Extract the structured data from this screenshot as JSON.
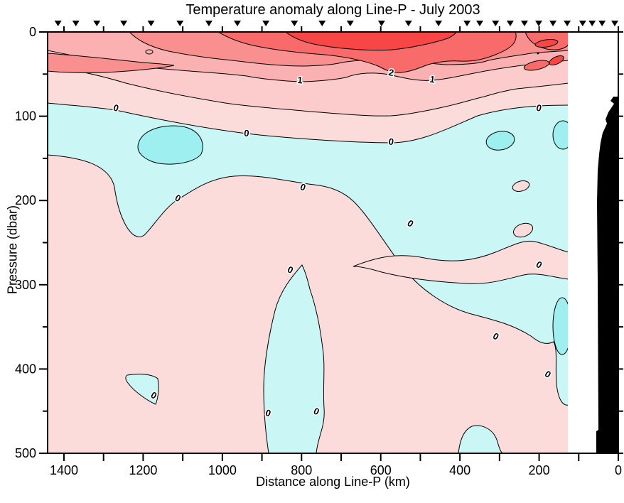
{
  "figure": {
    "title": "Temperature anomaly along Line-P - July 2003",
    "x_axis": {
      "label": "Distance along Line-P (km)",
      "min": 0,
      "max": 1400,
      "reversed": true,
      "labeled_ticks": [
        1400,
        1200,
        1000,
        800,
        600,
        400,
        200,
        0
      ],
      "minor_tick_step": 100
    },
    "y_axis": {
      "label": "Pressure (dbar)",
      "min": 0,
      "max": 500,
      "labeled_ticks": [
        0,
        100,
        200,
        300,
        400,
        500
      ],
      "minor_tick_step": 50
    }
  },
  "chart_data": {
    "type": "filled-contour-section",
    "title": "Temperature anomaly along Line-P - July 2003",
    "xlabel": "Distance along Line-P (km)",
    "ylabel": "Pressure (dbar)",
    "x_range_km": [
      1400,
      0
    ],
    "y_range_dbar": [
      0,
      500
    ],
    "grid": false,
    "contour_interval": 0.5,
    "labeled_contour_levels": [
      0,
      1,
      2
    ],
    "data_right_edge_km": 126,
    "bathymetry_note": "black seafloor/shelf silhouette near 0 km, from ~78 dbar at its top down to 500 dbar",
    "station_markers_km": [
      1415,
      1370,
      1317,
      1249,
      1180,
      1107,
      1034,
      962,
      890,
      818,
      748,
      677,
      598,
      530,
      454,
      382,
      350,
      310,
      273,
      237,
      201,
      165,
      129,
      90,
      66,
      41,
      9
    ],
    "contour_labels": [
      {
        "v": "0",
        "km": 1269,
        "dbar": 91,
        "rot": 15
      },
      {
        "v": "0",
        "km": 939,
        "dbar": 121,
        "rot": 8
      },
      {
        "v": "0",
        "km": 574,
        "dbar": 131,
        "rot": 10
      },
      {
        "v": "1",
        "km": 804,
        "dbar": 58,
        "rot": 5
      },
      {
        "v": "2",
        "km": 574,
        "dbar": 49,
        "rot": 12
      },
      {
        "v": "1",
        "km": 470,
        "dbar": 57,
        "rot": 8
      },
      {
        "v": "0",
        "km": 201,
        "dbar": 91,
        "rot": 15
      },
      {
        "v": "0",
        "km": 1113,
        "dbar": 198,
        "rot": 30
      },
      {
        "v": "0",
        "km": 797,
        "dbar": 185,
        "rot": 20
      },
      {
        "v": "0",
        "km": 829,
        "dbar": 283,
        "rot": 25
      },
      {
        "v": "0",
        "km": 526,
        "dbar": 228,
        "rot": 35
      },
      {
        "v": "0",
        "km": 201,
        "dbar": 277,
        "rot": 30
      },
      {
        "v": "0",
        "km": 310,
        "dbar": 362,
        "rot": 30
      },
      {
        "v": "0",
        "km": 179,
        "dbar": 407,
        "rot": 35
      },
      {
        "v": "0",
        "km": 1174,
        "dbar": 432,
        "rot": 30
      },
      {
        "v": "0",
        "km": 885,
        "dbar": 453,
        "rot": 20
      },
      {
        "v": "0",
        "km": 763,
        "dbar": 451,
        "rot": 25
      }
    ],
    "palette": {
      "p0": "#FCDBDB",
      "p05": "#FCCBCB",
      "p1": "#FBB1B1",
      "p15": "#FA8F8F",
      "p2": "#F96A6A",
      "p25": "#F84545",
      "n0": "#CBF6F6",
      "n05": "#9EF0F0",
      "black": "#000000"
    },
    "band_meaning": {
      "p0": "0 to 0.5",
      "p05": "0.5 to 1",
      "p1": "1 to 1.5",
      "p15": "1.5 to 2",
      "p2": "2 to 2.5",
      "p25": "above 2.5",
      "n0": "-0.5 to 0",
      "n05": "below -0.5"
    }
  }
}
